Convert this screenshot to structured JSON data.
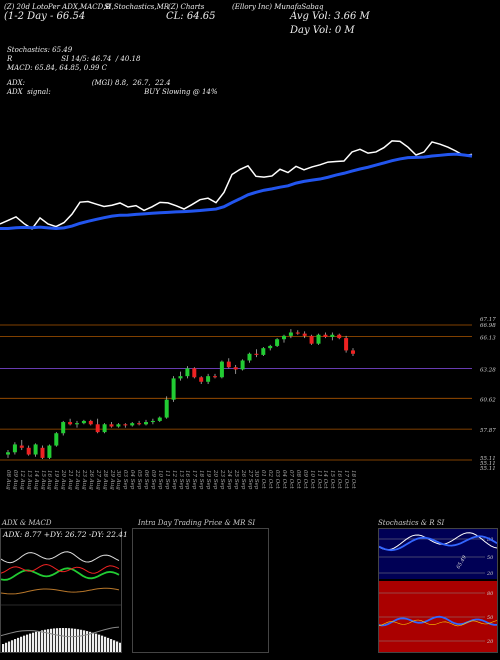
{
  "header": {
    "line1": "(Z) 20d LotoPer ADX,MACD,B",
    "line1b": "SI,Stochastics,MR",
    "line1c": "(Z) Charts",
    "line1d": "(Ellory Inc) MunafaSabaq",
    "line2": "(1-2 Day - 66.54",
    "close": "CL: 64.65",
    "avg_vol": "Avg Vol: 3.66  M",
    "day_vol": "Day Vol: 0  M"
  },
  "indicators": {
    "stoch": "Stochastics: 65.49",
    "rsi": "R                      SI 14/5: 46.74  / 40.18",
    "macd": "MACD: 65.84,  64.85, 0.99 C",
    "adx": "ADX:                              (MGI) 8.8,  26.7,  22.4",
    "adx_signal": "ADX  signal:                                          BUY Slowing @ 14%"
  },
  "price_axis": [
    "67.17",
    "66.98",
    "66.13",
    "63.28",
    "60.62",
    "57.87",
    "55.11",
    "55.11",
    "55.11"
  ],
  "dates": [
    "08 Aug",
    "09 Aug",
    "12 Aug",
    "13 Aug",
    "14 Aug",
    "15 Aug",
    "16 Aug",
    "19 Aug",
    "20 Aug",
    "21 Aug",
    "22 Aug",
    "23 Aug",
    "26 Aug",
    "27 Aug",
    "28 Aug",
    "29 Aug",
    "30 Aug",
    "03 Sep",
    "04 Sep",
    "05 Sep",
    "06 Sep",
    "09 Sep",
    "10 Sep",
    "11 Sep",
    "12 Sep",
    "13 Sep",
    "16 Sep",
    "17 Sep",
    "18 Sep",
    "19 Sep",
    "20 Sep",
    "23 Sep",
    "24 Sep",
    "25 Sep",
    "26 Sep",
    "27 Sep",
    "30 Sep",
    "01 Oct",
    "02 Oct",
    "03 Oct",
    "04 Oct",
    "07 Oct",
    "08 Oct",
    "09 Oct",
    "10 Oct",
    "11 Oct",
    "14 Oct",
    "15 Oct",
    "16 Oct",
    "17 Oct",
    "18 Oct"
  ],
  "panels": {
    "adx_title": "ADX  & MACD",
    "adx_values": "ADX: 8.77  +DY: 26.72  -DY: 22.41",
    "intraday_title": "Intra  Day Trading Price  & MR                    SI",
    "stoch_title": "Stochastics & R                SI",
    "stoch_ticks": [
      "80",
      "50",
      "20"
    ],
    "rsi_ticks": [
      "80",
      "50",
      "20"
    ],
    "stoch_value": "65.49"
  },
  "colors": {
    "up": "#22cc33",
    "down": "#ee2222",
    "ma": "#2255ee",
    "orange_line": "#b8772a",
    "rsi_bg": "#aa0000",
    "stoch_bg": "#000055"
  },
  "chart_data": {
    "type": "candlestick",
    "ylim": [
      55.11,
      67.17
    ],
    "candles": [
      [
        55.6,
        56.0,
        55.3,
        55.8
      ],
      [
        55.8,
        56.7,
        55.6,
        56.5
      ],
      [
        56.4,
        56.9,
        56.0,
        56.2
      ],
      [
        56.2,
        56.4,
        55.5,
        55.6
      ],
      [
        55.6,
        56.6,
        55.4,
        56.5
      ],
      [
        56.2,
        56.4,
        55.2,
        55.3
      ],
      [
        55.3,
        56.5,
        55.2,
        56.4
      ],
      [
        56.4,
        57.6,
        56.3,
        57.5
      ],
      [
        57.5,
        58.6,
        57.3,
        58.5
      ],
      [
        58.5,
        58.8,
        58.2,
        58.3
      ],
      [
        58.3,
        58.6,
        58.0,
        58.4
      ],
      [
        58.4,
        58.7,
        58.3,
        58.6
      ],
      [
        58.6,
        58.7,
        58.2,
        58.3
      ],
      [
        58.3,
        58.8,
        57.5,
        57.6
      ],
      [
        57.6,
        58.4,
        57.5,
        58.3
      ],
      [
        58.3,
        58.5,
        58.0,
        58.1
      ],
      [
        58.1,
        58.4,
        58.0,
        58.3
      ],
      [
        58.3,
        58.4,
        58.0,
        58.2
      ],
      [
        58.2,
        58.5,
        58.1,
        58.4
      ],
      [
        58.4,
        58.6,
        58.2,
        58.3
      ],
      [
        58.3,
        58.7,
        58.2,
        58.5
      ],
      [
        58.5,
        58.8,
        58.3,
        58.6
      ],
      [
        58.6,
        59.0,
        58.5,
        58.9
      ],
      [
        58.9,
        60.8,
        58.8,
        60.5
      ],
      [
        60.5,
        62.6,
        60.3,
        62.4
      ],
      [
        62.4,
        63.0,
        62.2,
        62.6
      ],
      [
        62.6,
        63.5,
        62.4,
        63.3
      ],
      [
        63.3,
        63.4,
        62.4,
        62.5
      ],
      [
        62.5,
        62.6,
        61.9,
        62.1
      ],
      [
        62.1,
        62.8,
        61.9,
        62.6
      ],
      [
        62.6,
        62.8,
        62.4,
        62.5
      ],
      [
        62.5,
        64.0,
        62.4,
        63.9
      ],
      [
        63.9,
        64.2,
        63.3,
        63.4
      ],
      [
        63.4,
        63.6,
        62.8,
        63.2
      ],
      [
        63.2,
        64.1,
        63.1,
        64.0
      ],
      [
        64.0,
        64.7,
        63.8,
        64.6
      ],
      [
        64.6,
        65.0,
        64.3,
        64.5
      ],
      [
        64.5,
        65.2,
        64.4,
        65.1
      ],
      [
        65.1,
        65.4,
        64.9,
        65.3
      ],
      [
        65.3,
        66.0,
        65.2,
        65.9
      ],
      [
        65.9,
        66.3,
        65.6,
        66.2
      ],
      [
        66.2,
        66.8,
        66.0,
        66.5
      ],
      [
        66.5,
        66.7,
        66.3,
        66.4
      ],
      [
        66.4,
        66.6,
        66.0,
        66.2
      ],
      [
        66.2,
        66.3,
        65.4,
        65.5
      ],
      [
        65.5,
        66.4,
        65.4,
        66.3
      ],
      [
        66.3,
        66.5,
        66.0,
        66.1
      ],
      [
        66.1,
        66.5,
        65.8,
        66.3
      ],
      [
        66.3,
        66.4,
        65.9,
        66.0
      ],
      [
        66.0,
        66.2,
        64.7,
        64.9
      ],
      [
        64.9,
        65.1,
        64.4,
        64.6
      ]
    ]
  }
}
